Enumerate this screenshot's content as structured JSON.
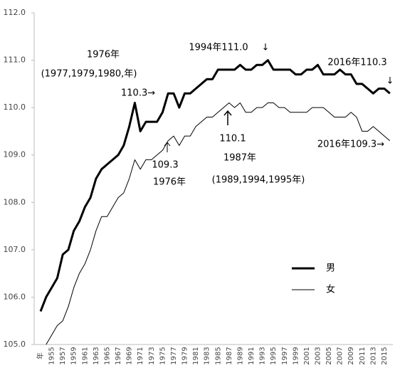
{
  "chart_data": {
    "type": "line",
    "categories": [
      "年",
      null,
      "1955",
      null,
      "1957",
      null,
      "1959",
      null,
      "1961",
      null,
      "1963",
      null,
      "1965",
      null,
      "1967",
      null,
      "1969",
      null,
      "1971",
      null,
      "1973",
      null,
      "1975",
      null,
      "1977",
      null,
      "1979",
      null,
      "1981",
      null,
      "1983",
      null,
      "1985",
      null,
      "1987",
      null,
      "1989",
      null,
      "1991",
      null,
      "1993",
      null,
      "1995",
      null,
      "1997",
      null,
      "1999",
      null,
      "2001",
      null,
      "2003",
      null,
      "2005",
      null,
      "2007",
      null,
      "2009",
      null,
      "2011",
      null,
      "2013",
      null,
      "2015",
      null
    ],
    "series": [
      {
        "name": "男",
        "color": "#000000",
        "values": [
          105.7,
          106.0,
          106.2,
          106.4,
          106.9,
          107.0,
          107.4,
          107.6,
          107.9,
          108.1,
          108.5,
          108.7,
          108.8,
          108.9,
          109.0,
          109.2,
          109.6,
          110.1,
          109.5,
          109.7,
          109.7,
          109.7,
          109.9,
          110.3,
          110.3,
          110.0,
          110.3,
          110.3,
          110.4,
          110.5,
          110.6,
          110.6,
          110.8,
          110.8,
          110.8,
          110.8,
          110.9,
          110.8,
          110.8,
          110.9,
          110.9,
          111.0,
          110.8,
          110.8,
          110.8,
          110.8,
          110.7,
          110.7,
          110.8,
          110.8,
          110.9,
          110.7,
          110.7,
          110.7,
          110.8,
          110.7,
          110.7,
          110.5,
          110.5,
          110.4,
          110.3,
          110.4,
          110.4,
          110.3
        ]
      },
      {
        "name": "女",
        "color": "#000000",
        "values": [
          null,
          105.0,
          105.2,
          105.4,
          105.5,
          105.8,
          106.2,
          106.5,
          106.7,
          107.0,
          107.4,
          107.7,
          107.7,
          107.9,
          108.1,
          108.2,
          108.5,
          108.9,
          108.7,
          108.9,
          108.9,
          109.0,
          109.1,
          109.3,
          109.4,
          109.2,
          109.4,
          109.4,
          109.6,
          109.7,
          109.8,
          109.8,
          109.9,
          110.0,
          110.1,
          110.0,
          110.1,
          109.9,
          109.9,
          110.0,
          110.0,
          110.1,
          110.1,
          110.0,
          110.0,
          109.9,
          109.9,
          109.9,
          109.9,
          110.0,
          110.0,
          110.0,
          109.9,
          109.8,
          109.8,
          109.8,
          109.9,
          109.8,
          109.5,
          109.5,
          109.6,
          109.5,
          109.4,
          109.3
        ]
      }
    ],
    "ylim": [
      105,
      112
    ],
    "yticks": [
      {
        "value": 105,
        "label": "105.0"
      },
      {
        "value": 106,
        "label": "106.0"
      },
      {
        "value": 107,
        "label": "107.0"
      },
      {
        "value": 108,
        "label": "108.0"
      },
      {
        "value": 109,
        "label": "109.0"
      },
      {
        "value": 110,
        "label": "110.0"
      },
      {
        "value": 111,
        "label": "111.0"
      },
      {
        "value": 112,
        "label": "112.0"
      }
    ],
    "grid": false,
    "legend": "lower right",
    "annotations": [
      "1976年",
      "(1977,1979,1980,年)",
      "110.3→",
      "1994年111.0",
      "↓",
      "2016年110.3",
      "↓",
      "110.1",
      "1987年",
      "(1989,1994,1995年)",
      "109.3",
      "1976年",
      "2016年109.3→"
    ]
  }
}
